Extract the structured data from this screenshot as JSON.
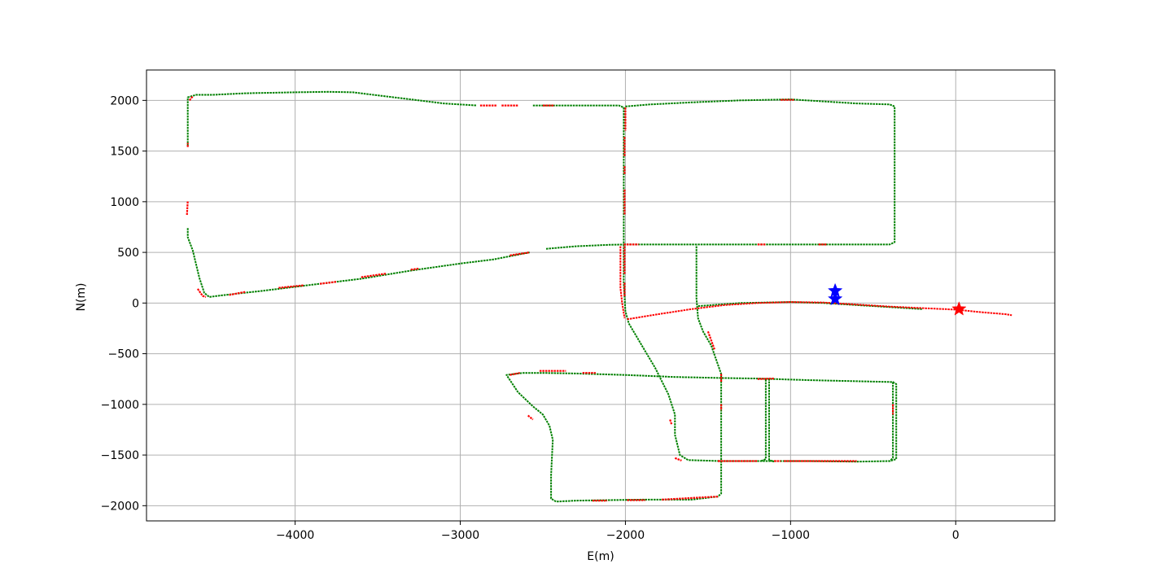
{
  "chart_data": {
    "type": "scatter",
    "title": "",
    "xlabel": "E(m)",
    "ylabel": "N(m)",
    "xlim": [
      -4900,
      600
    ],
    "ylim": [
      -2150,
      2300
    ],
    "xticks": [
      -4000,
      -3000,
      -2000,
      -1000,
      0
    ],
    "yticks": [
      -2000,
      -1500,
      -1000,
      -500,
      0,
      500,
      1000,
      1500,
      2000
    ],
    "xtick_labels": [
      "−4000",
      "−3000",
      "−2000",
      "−1000",
      "0"
    ],
    "ytick_labels": [
      "−2000",
      "−1500",
      "−1000",
      "−500",
      "0",
      "500",
      "1000",
      "1500",
      "2000"
    ],
    "grid": true,
    "colors": {
      "series_a": "#008000",
      "series_b": "#ff0000",
      "marker_blue": "#0000ff",
      "marker_red": "#ff0000"
    },
    "track_polylines": [
      {
        "color": "green",
        "points": [
          [
            -4650,
            1550
          ],
          [
            -4650,
            2030
          ],
          [
            -4600,
            2055
          ],
          [
            -4500,
            2055
          ],
          [
            -4300,
            2070
          ],
          [
            -4000,
            2080
          ],
          [
            -3800,
            2085
          ],
          [
            -3650,
            2080
          ],
          [
            -3450,
            2040
          ],
          [
            -3300,
            2010
          ],
          [
            -3100,
            1970
          ],
          [
            -2900,
            1950
          ]
        ]
      },
      {
        "color": "green",
        "points": [
          [
            -2560,
            1950
          ],
          [
            -2040,
            1950
          ],
          [
            -2010,
            1930
          ],
          [
            -2010,
            580
          ]
        ]
      },
      {
        "color": "green",
        "points": [
          [
            -2000,
            1940
          ],
          [
            -1850,
            1960
          ],
          [
            -1600,
            1980
          ],
          [
            -1300,
            2000
          ],
          [
            -1000,
            2010
          ],
          [
            -800,
            1990
          ],
          [
            -600,
            1970
          ],
          [
            -400,
            1960
          ],
          [
            -370,
            1940
          ],
          [
            -370,
            600
          ],
          [
            -400,
            578
          ],
          [
            -2010,
            578
          ]
        ]
      },
      {
        "color": "green",
        "points": [
          [
            -4650,
            740
          ],
          [
            -4650,
            650
          ],
          [
            -4620,
            520
          ],
          [
            -4580,
            250
          ],
          [
            -4550,
            100
          ],
          [
            -4520,
            60
          ],
          [
            -4450,
            75
          ],
          [
            -4200,
            120
          ],
          [
            -3900,
            180
          ],
          [
            -3600,
            240
          ],
          [
            -3300,
            320
          ],
          [
            -3000,
            390
          ],
          [
            -2800,
            430
          ],
          [
            -2580,
            500
          ]
        ]
      },
      {
        "color": "green",
        "points": [
          [
            -2480,
            535
          ],
          [
            -2300,
            560
          ],
          [
            -2100,
            575
          ],
          [
            -2010,
            578
          ]
        ]
      },
      {
        "color": "green",
        "points": [
          [
            -2010,
            580
          ],
          [
            -2010,
            200
          ],
          [
            -2000,
            -80
          ],
          [
            -1980,
            -200
          ],
          [
            -1900,
            -420
          ],
          [
            -1820,
            -640
          ],
          [
            -1740,
            -900
          ],
          [
            -1700,
            -1100
          ],
          [
            -1700,
            -1300
          ],
          [
            -1670,
            -1500
          ],
          [
            -1620,
            -1550
          ],
          [
            -1420,
            -1560
          ],
          [
            -1200,
            -1560
          ],
          [
            -900,
            -1560
          ],
          [
            -600,
            -1565
          ],
          [
            -400,
            -1560
          ],
          [
            -360,
            -1540
          ],
          [
            -360,
            -800
          ],
          [
            -380,
            -780
          ],
          [
            -900,
            -760
          ],
          [
            -1200,
            -745
          ],
          [
            -1400,
            -740
          ],
          [
            -1700,
            -730
          ],
          [
            -2000,
            -710
          ],
          [
            -2300,
            -695
          ],
          [
            -2500,
            -690
          ],
          [
            -2620,
            -690
          ],
          [
            -2720,
            -710
          ],
          [
            -2650,
            -880
          ],
          [
            -2560,
            -1020
          ],
          [
            -2500,
            -1100
          ],
          [
            -2460,
            -1210
          ],
          [
            -2440,
            -1350
          ],
          [
            -2450,
            -1700
          ],
          [
            -2450,
            -1930
          ],
          [
            -2420,
            -1960
          ],
          [
            -2300,
            -1950
          ],
          [
            -2100,
            -1945
          ],
          [
            -1900,
            -1940
          ],
          [
            -1600,
            -1940
          ],
          [
            -1440,
            -1910
          ],
          [
            -1420,
            -1880
          ],
          [
            -1420,
            -700
          ],
          [
            -1480,
            -420
          ],
          [
            -1530,
            -280
          ],
          [
            -1560,
            -150
          ],
          [
            -1570,
            50
          ],
          [
            -1570,
            570
          ]
        ]
      },
      {
        "color": "green",
        "points": [
          [
            -1150,
            -755
          ],
          [
            -1150,
            -1540
          ],
          [
            -1180,
            -1560
          ]
        ]
      },
      {
        "color": "green",
        "points": [
          [
            -1130,
            -745
          ],
          [
            -1130,
            -1550
          ],
          [
            -1100,
            -1565
          ]
        ]
      },
      {
        "color": "green",
        "points": [
          [
            -380,
            -780
          ],
          [
            -380,
            -1530
          ],
          [
            -400,
            -1560
          ]
        ]
      },
      {
        "color": "green",
        "points": [
          [
            -1560,
            -30
          ],
          [
            -1300,
            0
          ],
          [
            -1000,
            10
          ],
          [
            -800,
            0
          ],
          [
            -600,
            -20
          ],
          [
            -400,
            -40
          ],
          [
            -200,
            -60
          ]
        ]
      },
      {
        "color": "red",
        "points": [
          [
            -1990,
            -160
          ],
          [
            -1800,
            -110
          ],
          [
            -1600,
            -60
          ],
          [
            -1400,
            -20
          ],
          [
            -1200,
            0
          ],
          [
            -1000,
            10
          ],
          [
            -800,
            5
          ],
          [
            -600,
            -15
          ],
          [
            -400,
            -35
          ],
          [
            -200,
            -50
          ],
          [
            0,
            -65
          ],
          [
            150,
            -90
          ],
          [
            300,
            -110
          ],
          [
            340,
            -120
          ]
        ]
      },
      {
        "color": "red",
        "points": [
          [
            -2030,
            560
          ],
          [
            -2030,
            150
          ],
          [
            -2020,
            0
          ],
          [
            -2005,
            -150
          ]
        ]
      }
    ],
    "red_segments": [
      {
        "points": [
          [
            -4650,
            1540
          ],
          [
            -4650,
            1580
          ]
        ]
      },
      {
        "points": [
          [
            -4640,
            2000
          ],
          [
            -4620,
            2040
          ]
        ]
      },
      {
        "points": [
          [
            -4655,
            870
          ],
          [
            -4650,
            1010
          ]
        ]
      },
      {
        "points": [
          [
            -4590,
            140
          ],
          [
            -4560,
            70
          ],
          [
            -4540,
            60
          ]
        ]
      },
      {
        "points": [
          [
            -4400,
            80
          ],
          [
            -4300,
            110
          ]
        ]
      },
      {
        "points": [
          [
            -4100,
            150
          ],
          [
            -3950,
            175
          ]
        ]
      },
      {
        "points": [
          [
            -3850,
            190
          ],
          [
            -3750,
            210
          ]
        ]
      },
      {
        "points": [
          [
            -3600,
            255
          ],
          [
            -3450,
            290
          ]
        ]
      },
      {
        "points": [
          [
            -3300,
            330
          ],
          [
            -3250,
            340
          ]
        ]
      },
      {
        "points": [
          [
            -2700,
            470
          ],
          [
            -2580,
            500
          ]
        ]
      },
      {
        "points": [
          [
            -2880,
            1950
          ],
          [
            -2780,
            1950
          ]
        ]
      },
      {
        "points": [
          [
            -2750,
            1950
          ],
          [
            -2650,
            1950
          ]
        ]
      },
      {
        "points": [
          [
            -2500,
            1950
          ],
          [
            -2430,
            1950
          ]
        ]
      },
      {
        "points": [
          [
            -2000,
            1930
          ],
          [
            -2000,
            1700
          ]
        ]
      },
      {
        "points": [
          [
            -2005,
            1640
          ],
          [
            -2005,
            1450
          ]
        ]
      },
      {
        "points": [
          [
            -2005,
            1350
          ],
          [
            -2005,
            1270
          ]
        ]
      },
      {
        "points": [
          [
            -2005,
            1120
          ],
          [
            -2005,
            870
          ]
        ]
      },
      {
        "points": [
          [
            -1060,
            2005
          ],
          [
            -980,
            2005
          ]
        ]
      },
      {
        "points": [
          [
            -830,
            578
          ],
          [
            -780,
            578
          ]
        ]
      },
      {
        "points": [
          [
            -1200,
            578
          ],
          [
            -1150,
            578
          ]
        ]
      },
      {
        "points": [
          [
            -2010,
            578
          ],
          [
            -1920,
            578
          ]
        ]
      },
      {
        "points": [
          [
            -1500,
            -280
          ],
          [
            -1460,
            -460
          ]
        ]
      },
      {
        "points": [
          [
            -1420,
            -700
          ],
          [
            -1420,
            -780
          ]
        ]
      },
      {
        "points": [
          [
            -1420,
            -1000
          ],
          [
            -1420,
            -1060
          ]
        ]
      },
      {
        "points": [
          [
            -2520,
            -670
          ],
          [
            -2360,
            -670
          ]
        ]
      },
      {
        "points": [
          [
            -2700,
            -710
          ],
          [
            -2640,
            -690
          ]
        ]
      },
      {
        "points": [
          [
            -2260,
            -690
          ],
          [
            -2180,
            -690
          ]
        ]
      },
      {
        "points": [
          [
            -2590,
            -1110
          ],
          [
            -2560,
            -1150
          ]
        ]
      },
      {
        "points": [
          [
            -2200,
            -1950
          ],
          [
            -2110,
            -1950
          ]
        ]
      },
      {
        "points": [
          [
            -1990,
            -1945
          ],
          [
            -1880,
            -1945
          ]
        ]
      },
      {
        "points": [
          [
            -1780,
            -1940
          ],
          [
            -1440,
            -1910
          ]
        ]
      },
      {
        "points": [
          [
            -1440,
            -1560
          ],
          [
            -1200,
            -1560
          ]
        ]
      },
      {
        "points": [
          [
            -1100,
            -1560
          ],
          [
            -1060,
            -1560
          ]
        ]
      },
      {
        "points": [
          [
            -1040,
            -1560
          ],
          [
            -600,
            -1560
          ]
        ]
      },
      {
        "points": [
          [
            -380,
            -1000
          ],
          [
            -380,
            -1100
          ]
        ]
      },
      {
        "points": [
          [
            -1730,
            -1150
          ],
          [
            -1720,
            -1200
          ]
        ]
      },
      {
        "points": [
          [
            -1700,
            -1530
          ],
          [
            -1660,
            -1555
          ]
        ]
      },
      {
        "points": [
          [
            -1440,
            -1560
          ],
          [
            -1420,
            -1560
          ]
        ]
      },
      {
        "points": [
          [
            -1200,
            -750
          ],
          [
            -1100,
            -745
          ]
        ]
      },
      {
        "points": [
          [
            -2005,
            560
          ],
          [
            -2005,
            280
          ]
        ]
      },
      {
        "points": [
          [
            -2005,
            200
          ],
          [
            -2005,
            60
          ]
        ]
      }
    ],
    "markers": [
      {
        "shape": "star",
        "color": "blue",
        "x": -730,
        "y": 120
      },
      {
        "shape": "star",
        "color": "blue",
        "x": -730,
        "y": 40
      },
      {
        "shape": "star",
        "color": "red",
        "x": 20,
        "y": -60
      }
    ]
  }
}
